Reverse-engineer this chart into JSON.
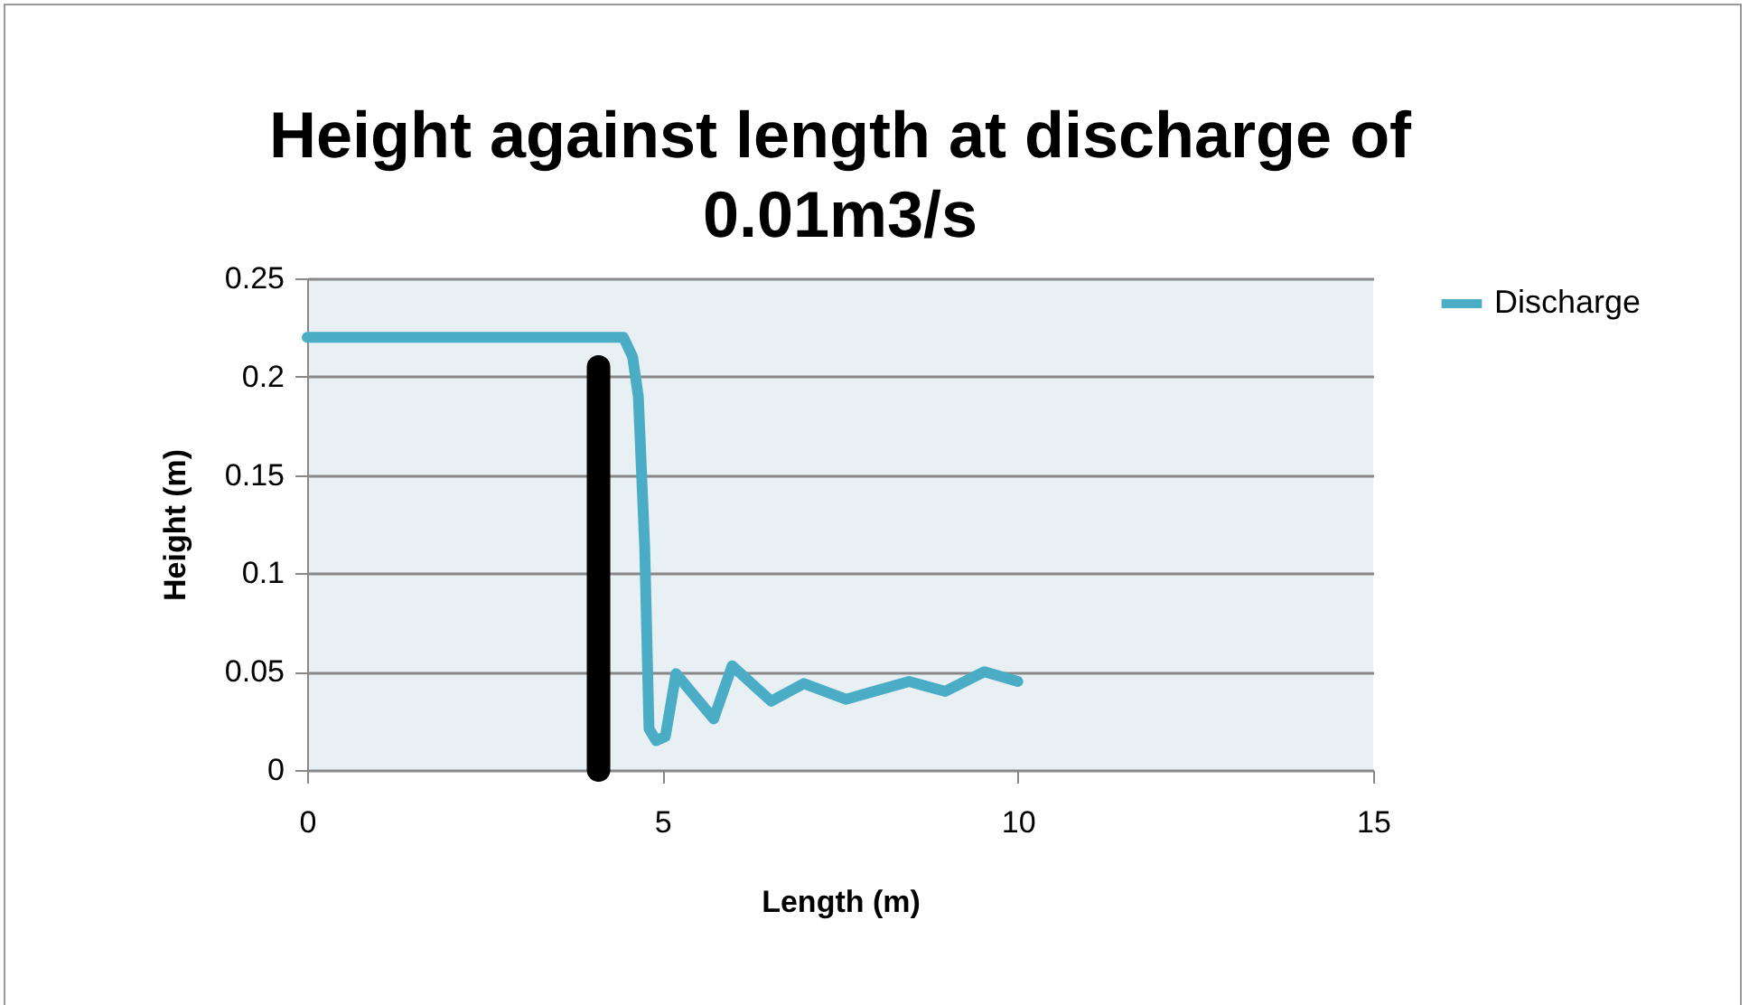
{
  "chart_data": {
    "type": "line",
    "title": "Height against length at discharge of 0.01m3/s",
    "xlabel": "Length (m)",
    "ylabel": "Height (m)",
    "series": [
      {
        "name": "Discharge",
        "color": "#4bacc6",
        "x": [
          0,
          4.45,
          4.58,
          4.66,
          4.75,
          4.81,
          4.91,
          5.04,
          5.19,
          5.72,
          5.98,
          6.53,
          6.99,
          7.58,
          8.47,
          8.98,
          9.53,
          10.0
        ],
        "values": [
          0.22,
          0.22,
          0.21,
          0.19,
          0.113,
          0.021,
          0.015,
          0.017,
          0.049,
          0.026,
          0.053,
          0.035,
          0.044,
          0.036,
          0.045,
          0.04,
          0.05,
          0.045
        ]
      },
      {
        "color": "#000000",
        "x": [
          4.1,
          4.1
        ],
        "values": [
          0,
          0.205
        ]
      }
    ],
    "xlim": [
      0,
      15
    ],
    "xticks": [
      0,
      5,
      10,
      15
    ],
    "ylim": [
      0,
      0.25
    ],
    "yticks": [
      0,
      0.05,
      0.1,
      0.15,
      0.2,
      0.25
    ],
    "grid": "y",
    "legend": "right",
    "marker": "none",
    "line_style": "solid"
  }
}
